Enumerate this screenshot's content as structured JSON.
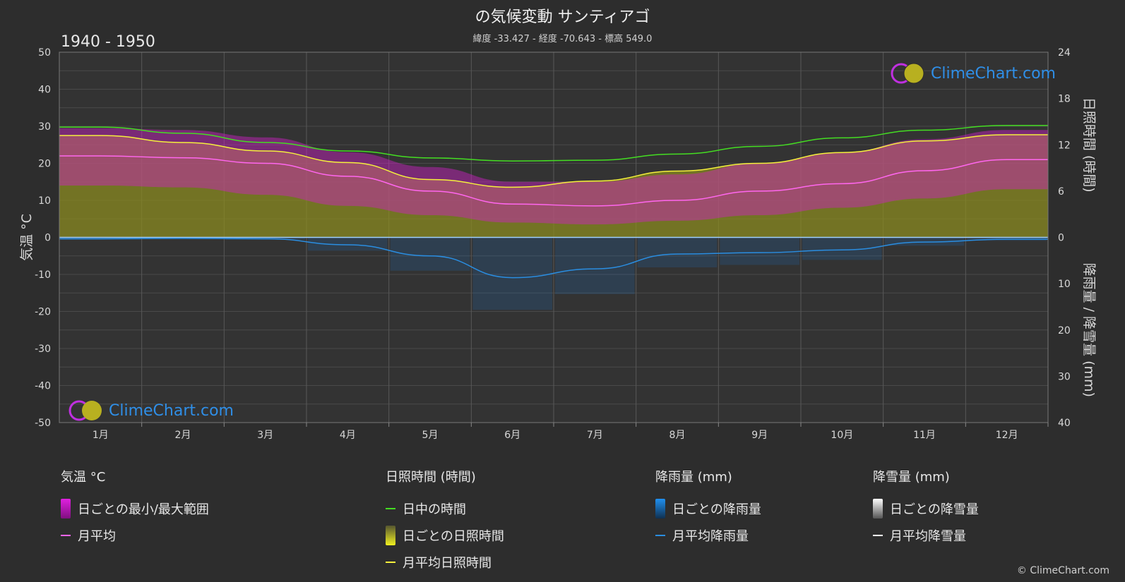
{
  "header": {
    "title": "の気候変動 サンティアゴ",
    "subtitle": "緯度 -33.427 - 経度 -70.643 - 標高 549.0",
    "period": "1940 - 1950"
  },
  "logo": {
    "text": "ClimeChart.com"
  },
  "copyright": "© ClimeChart.com",
  "colors": {
    "background": "#2d2d2d",
    "temp_range": "#d020c8",
    "temp_avg": "#ff66ee",
    "daylight": "#44dd22",
    "sunshine_fill": "#8a8a20",
    "sunshine_avg": "#f5f03c",
    "rain": "#1e78d8",
    "rain_avg": "#2a8de0",
    "snow": "#ffffff"
  },
  "legend": {
    "temperature": {
      "title": "気温 °C",
      "range": "日ごとの最小/最大範囲",
      "avg": "月平均"
    },
    "sunshine": {
      "title": "日照時間 (時間)",
      "daylight": "日中の時間",
      "daily": "日ごとの日照時間",
      "avg": "月平均日照時間"
    },
    "rain": {
      "title": "降雨量 (mm)",
      "daily": "日ごとの降雨量",
      "avg": "月平均降雨量"
    },
    "snow": {
      "title": "降雪量 (mm)",
      "daily": "日ごとの降雪量",
      "avg": "月平均降雪量"
    }
  },
  "chart_data": {
    "type": "area",
    "categories": [
      "1月",
      "2月",
      "3月",
      "4月",
      "5月",
      "6月",
      "7月",
      "8月",
      "9月",
      "10月",
      "11月",
      "12月"
    ],
    "y_left": {
      "label": "気温 °C",
      "ylim": [
        -50,
        50
      ],
      "ticks": [
        50,
        40,
        30,
        20,
        10,
        0,
        -10,
        -20,
        -30,
        -40,
        -50
      ]
    },
    "y_right_top": {
      "label": "日照時間 (時間)",
      "ylim": [
        0,
        24
      ],
      "ticks": [
        24,
        18,
        12,
        6,
        0
      ]
    },
    "y_right_bottom": {
      "label": "降雨量 / 降雪量 (mm)",
      "ylim": [
        0,
        40
      ],
      "ticks": [
        0,
        10,
        20,
        30,
        40
      ]
    },
    "grid": true,
    "series": [
      {
        "name": "日中の時間",
        "axis": "sunshine",
        "values": [
          14.3,
          13.5,
          12.3,
          11.2,
          10.3,
          9.9,
          10.0,
          10.8,
          11.8,
          12.9,
          13.9,
          14.5
        ]
      },
      {
        "name": "月平均日照時間",
        "axis": "sunshine",
        "values": [
          13.2,
          12.3,
          11.2,
          9.7,
          7.5,
          6.5,
          7.3,
          8.6,
          9.6,
          11.0,
          12.5,
          13.3
        ]
      },
      {
        "name": "月平均",
        "axis": "temperature",
        "values": [
          22.0,
          21.5,
          20.0,
          16.5,
          12.5,
          9.0,
          8.5,
          10.0,
          12.5,
          14.5,
          18.0,
          21.0
        ]
      },
      {
        "name": "日ごとの最小/最大範囲 (max)",
        "axis": "temperature",
        "values": [
          29.5,
          29.0,
          27.0,
          23.0,
          19.0,
          15.0,
          15.0,
          17.0,
          20.0,
          23.0,
          26.5,
          29.0
        ]
      },
      {
        "name": "日ごとの最小/最大範囲 (min)",
        "axis": "temperature",
        "values": [
          14.0,
          13.5,
          11.5,
          8.5,
          6.0,
          4.0,
          3.5,
          4.5,
          6.0,
          8.0,
          10.5,
          13.0
        ]
      },
      {
        "name": "月平均降雨量",
        "axis": "rain",
        "values": [
          0.3,
          0.2,
          0.3,
          1.6,
          4.0,
          8.7,
          6.8,
          3.6,
          3.3,
          2.7,
          1.0,
          0.4
        ]
      },
      {
        "name": "月平均降雪量",
        "axis": "snow",
        "values": [
          0,
          0,
          0,
          0,
          0,
          0,
          0,
          0,
          0,
          0,
          0,
          0
        ]
      }
    ]
  }
}
